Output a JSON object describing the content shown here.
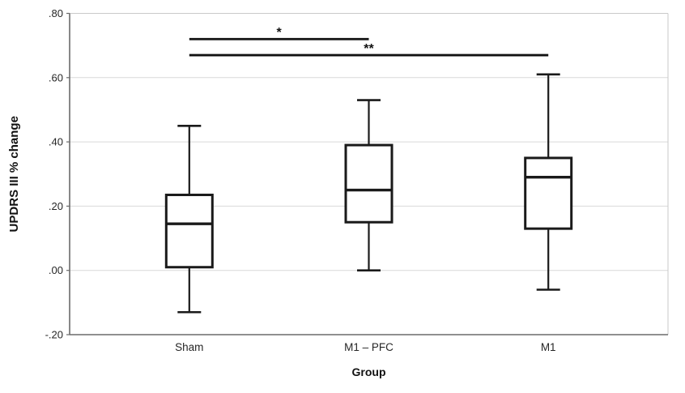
{
  "chart_data": {
    "type": "boxplot",
    "title": "",
    "xlabel": "Group",
    "ylabel": "UPDRS III % change",
    "categories": [
      "Sham",
      "M1 – PFC",
      "M1"
    ],
    "y_ticks": [
      ".80",
      ".60",
      ".40",
      ".20",
      ".00",
      "-.20"
    ],
    "ylim": [
      -0.2,
      0.8
    ],
    "grid": true,
    "legend": false,
    "series": [
      {
        "name": "Sham",
        "whisker_low": -0.13,
        "q1": 0.01,
        "median": 0.145,
        "q3": 0.235,
        "whisker_high": 0.45
      },
      {
        "name": "M1 – PFC",
        "whisker_low": 0.0,
        "q1": 0.15,
        "median": 0.25,
        "q3": 0.39,
        "whisker_high": 0.53
      },
      {
        "name": "M1",
        "whisker_low": -0.06,
        "q1": 0.13,
        "median": 0.29,
        "q3": 0.35,
        "whisker_high": 0.61
      }
    ],
    "annotations": [
      {
        "type": "significance-bar",
        "from": "Sham",
        "to": "M1 – PFC",
        "from_index": 0,
        "to_index": 1,
        "label": "*",
        "y_value": 0.72
      },
      {
        "type": "significance-bar",
        "from": "Sham",
        "to": "M1",
        "from_index": 0,
        "to_index": 2,
        "label": "**",
        "y_value": 0.67
      }
    ]
  },
  "colors": {
    "box_stroke": "#1a1a1a",
    "box_fill": "#ffffff",
    "gridline": "#d9d9d9",
    "axis_dark": "#6b6b6b",
    "axis_light": "#c9c9c9",
    "sig_bar": "#111111",
    "text": "#262626",
    "background": "#ffffff"
  }
}
